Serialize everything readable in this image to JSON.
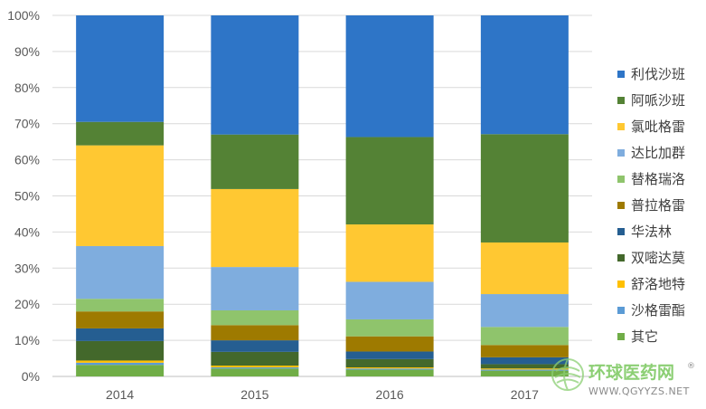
{
  "chart_data": {
    "type": "bar",
    "stacked": true,
    "percent": true,
    "categories": [
      "2014",
      "2015",
      "2016",
      "2017"
    ],
    "yticks": [
      "0%",
      "10%",
      "20%",
      "30%",
      "40%",
      "50%",
      "60%",
      "70%",
      "80%",
      "90%",
      "100%"
    ],
    "ylim": [
      0,
      100
    ],
    "grid": true,
    "legend": "right",
    "series": [
      {
        "name": "其它",
        "color": "#70AD47",
        "values": [
          3.2,
          2.2,
          1.9,
          1.6
        ]
      },
      {
        "name": "沙格雷酯",
        "color": "#5B9BD5",
        "values": [
          0.6,
          0.3,
          0.3,
          0.3
        ]
      },
      {
        "name": "舒洛地特",
        "color": "#FFC000",
        "values": [
          0.6,
          0.5,
          0.3,
          0.3
        ]
      },
      {
        "name": "双嘧达莫",
        "color": "#43682B",
        "values": [
          5.4,
          3.8,
          2.3,
          1.2
        ]
      },
      {
        "name": "华法林",
        "color": "#255E91",
        "values": [
          3.5,
          3.2,
          2.1,
          1.9
        ]
      },
      {
        "name": "普拉格雷",
        "color": "#9E7A00",
        "values": [
          4.7,
          4.2,
          4.2,
          3.4
        ]
      },
      {
        "name": "替格瑞洛",
        "color": "#8FC46C",
        "values": [
          3.5,
          4.1,
          4.7,
          5.0
        ]
      },
      {
        "name": "达比加群",
        "color": "#7FADDE",
        "values": [
          14.6,
          12.0,
          10.4,
          9.1
        ]
      },
      {
        "name": "氯吡格雷",
        "color": "#FFC832",
        "values": [
          27.9,
          21.6,
          15.9,
          14.3
        ]
      },
      {
        "name": "阿哌沙班",
        "color": "#548235",
        "values": [
          6.5,
          15.1,
          24.2,
          30.0
        ]
      },
      {
        "name": "利伐沙班",
        "color": "#2E75C7",
        "values": [
          29.5,
          33.0,
          33.7,
          32.9
        ]
      }
    ]
  },
  "watermark": {
    "name": "环球医药网",
    "url": "WWW.QGYYZS.NET",
    "registered": "®"
  }
}
